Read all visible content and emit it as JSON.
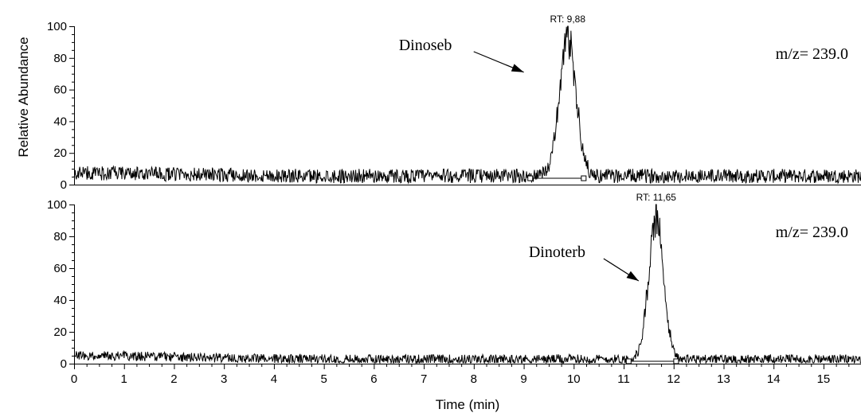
{
  "chart_data": [
    {
      "type": "line",
      "ylabel": "Relative Abundance",
      "xlim": [
        0,
        15.75
      ],
      "ylim": [
        0,
        100
      ],
      "yticks": [
        "0",
        "20",
        "40",
        "60",
        "80",
        "100"
      ],
      "mass_label": "m/z= 239.0",
      "peak_label": "RT: 9,88",
      "peak_rt": 9.88,
      "peak_width": 0.17,
      "peak_integration": [
        9.13,
        10.2
      ],
      "noise_start": 7,
      "noise_end": 5,
      "annotation": {
        "text": "Dinoseb",
        "x": 6.5,
        "y": 88,
        "arrow_to": [
          9.0,
          71
        ]
      },
      "series": [
        {
          "x": [
            0,
            0.25,
            0.5,
            0.75,
            1,
            1.5,
            2,
            3,
            4,
            5,
            6,
            7,
            8,
            9,
            9.13,
            9.3,
            9.4,
            9.5,
            9.6,
            9.7,
            9.8,
            9.88,
            9.95,
            10.05,
            10.15,
            10.2,
            10.3,
            11,
            12,
            13,
            14,
            15,
            15.75
          ],
          "values": [
            8,
            8,
            9,
            8,
            7,
            6,
            6,
            5,
            5,
            5,
            5,
            6,
            6,
            6,
            7,
            18,
            30,
            60,
            82,
            92,
            95,
            100,
            90,
            60,
            25,
            12,
            6,
            6,
            5,
            5,
            5,
            5,
            5
          ]
        }
      ]
    },
    {
      "type": "line",
      "xlabel": "Time (min)",
      "ylabel": "Relative Abundance",
      "xlim": [
        0,
        15.75
      ],
      "ylim": [
        0,
        100
      ],
      "xticks": [
        "0",
        "1",
        "2",
        "3",
        "4",
        "5",
        "6",
        "7",
        "8",
        "9",
        "10",
        "11",
        "12",
        "13",
        "14",
        "15"
      ],
      "yticks": [
        "0",
        "20",
        "40",
        "60",
        "80",
        "100"
      ],
      "mass_label": "m/z= 239.0",
      "peak_label": "RT: 11,65",
      "peak_rt": 11.65,
      "peak_width": 0.15,
      "peak_integration": [
        11.1,
        12.05
      ],
      "noise_start": 5,
      "noise_end": 2.5,
      "annotation": {
        "text": "Dinoterb",
        "x": 9.1,
        "y": 70,
        "arrow_to": [
          11.3,
          52
        ]
      },
      "series": [
        {
          "x": [
            0,
            0.5,
            1,
            1.5,
            2,
            3,
            4,
            5,
            6,
            7,
            8,
            9,
            10,
            10.5,
            11,
            11.2,
            11.3,
            11.4,
            11.5,
            11.6,
            11.65,
            11.75,
            11.85,
            11.95,
            12.05,
            12.2,
            13,
            14,
            15,
            15.75
          ],
          "values": [
            6,
            5,
            4,
            3,
            3,
            2,
            2,
            2,
            2,
            2,
            2,
            2,
            3,
            3,
            4,
            10,
            28,
            55,
            80,
            92,
            100,
            88,
            55,
            22,
            8,
            3,
            2,
            2,
            2,
            2
          ]
        }
      ]
    }
  ]
}
